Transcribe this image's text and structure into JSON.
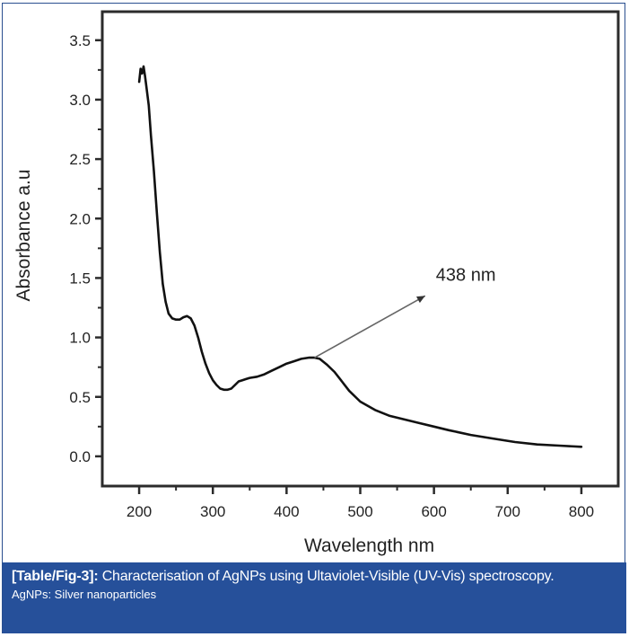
{
  "chart_data": {
    "type": "line",
    "title": "",
    "xlabel": "Wavelength nm",
    "ylabel": "Absorbance a.u",
    "xlim": [
      150,
      850
    ],
    "ylim": [
      -0.25,
      3.74
    ],
    "xticks": [
      200,
      300,
      400,
      500,
      600,
      700,
      800
    ],
    "xtick_labels": [
      "200",
      "300",
      "400",
      "500",
      "600",
      "700",
      "800"
    ],
    "xminor": [
      250,
      350,
      450,
      550,
      650,
      750
    ],
    "yticks": [
      0.0,
      0.5,
      1.0,
      1.5,
      2.0,
      2.5,
      3.0,
      3.5
    ],
    "ytick_labels": [
      "0.0",
      "0.5",
      "1.0",
      "1.5",
      "2.0",
      "2.5",
      "3.0",
      "3.5"
    ],
    "yminor": [
      0.25,
      0.75,
      1.25,
      1.75,
      2.25,
      2.75,
      3.25
    ],
    "grid": false,
    "series": [
      {
        "name": "AgNPs",
        "color": "#111111",
        "x": [
          200,
          202,
          204,
          206,
          208,
          210,
          213,
          216,
          220,
          224,
          228,
          232,
          236,
          240,
          245,
          250,
          255,
          260,
          265,
          270,
          275,
          280,
          285,
          290,
          295,
          300,
          305,
          310,
          315,
          320,
          325,
          330,
          335,
          340,
          345,
          350,
          360,
          370,
          380,
          390,
          400,
          410,
          420,
          430,
          438,
          445,
          455,
          465,
          475,
          485,
          500,
          520,
          540,
          560,
          580,
          600,
          620,
          650,
          680,
          710,
          740,
          770,
          800
        ],
        "y": [
          3.15,
          3.26,
          3.22,
          3.28,
          3.2,
          3.1,
          2.95,
          2.7,
          2.4,
          2.05,
          1.72,
          1.45,
          1.3,
          1.2,
          1.16,
          1.15,
          1.15,
          1.17,
          1.18,
          1.16,
          1.1,
          1.0,
          0.88,
          0.78,
          0.7,
          0.64,
          0.6,
          0.57,
          0.56,
          0.56,
          0.57,
          0.6,
          0.63,
          0.64,
          0.65,
          0.66,
          0.67,
          0.69,
          0.72,
          0.75,
          0.78,
          0.8,
          0.82,
          0.83,
          0.83,
          0.82,
          0.77,
          0.71,
          0.63,
          0.55,
          0.46,
          0.39,
          0.34,
          0.31,
          0.28,
          0.25,
          0.22,
          0.18,
          0.15,
          0.12,
          0.1,
          0.09,
          0.08
        ]
      }
    ],
    "annotations": [
      {
        "text": "438 nm",
        "arrow_from": [
          438,
          0.83
        ],
        "arrow_to": [
          588,
          1.35
        ]
      }
    ]
  },
  "caption": {
    "tag": "[Table/Fig-3]:",
    "text": " Characterisation of AgNPs using Ultaviolet-Visible (UV-Vis) spectroscopy.",
    "note": "AgNPs: Silver nanoparticles"
  },
  "colors": {
    "caption_bg": "#26509a",
    "caption_text": "#ffffff",
    "border": "#2a4f8f",
    "arrow": "#666666"
  }
}
